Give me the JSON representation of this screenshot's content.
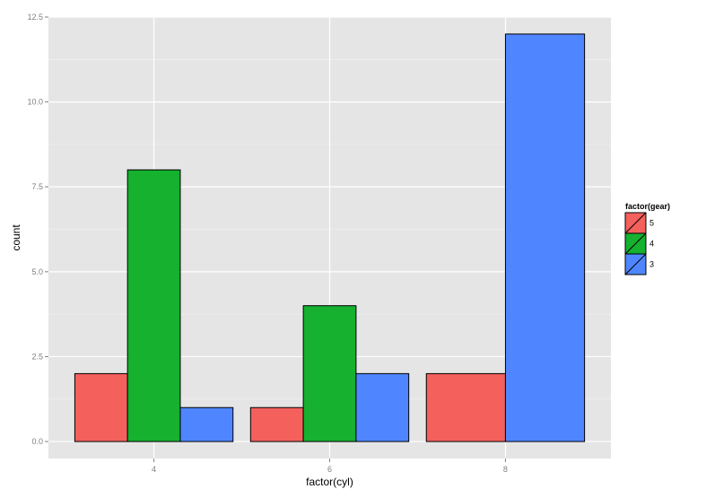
{
  "chart_data": {
    "type": "bar",
    "xlabel": "factor(cyl)",
    "ylabel": "count",
    "categories": [
      "4",
      "6",
      "8"
    ],
    "ylim": [
      -0.5,
      12.5
    ],
    "yticks": [
      "0.0",
      "2.5",
      "5.0",
      "7.5",
      "10.0",
      "12.5"
    ],
    "grid": true,
    "legend": {
      "title": "factor(gear)",
      "placement": "right",
      "entries": [
        "5",
        "4",
        "3"
      ]
    },
    "series": [
      {
        "name": "3",
        "color": "#4F86FF",
        "values": [
          1,
          2,
          12
        ]
      },
      {
        "name": "4",
        "color": "#15B12F",
        "values": [
          8,
          4,
          0
        ]
      },
      {
        "name": "5",
        "color": "#F4605C",
        "values": [
          2,
          1,
          2
        ]
      }
    ],
    "stack_order": [
      "5",
      "4",
      "3"
    ],
    "panel_background": "#E5E5E5",
    "gridline_color": "#ffffff",
    "bar_outline": "#000000"
  }
}
